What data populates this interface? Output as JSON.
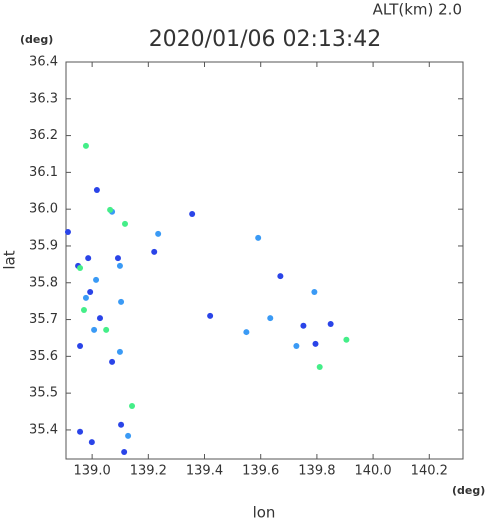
{
  "chart_data": {
    "type": "scatter",
    "annotation": "ALT(km) 2.0",
    "title": "2020/01/06 02:13:42",
    "y_unit": "(deg)",
    "x_unit": "(deg)",
    "y_label": "lat",
    "x_label": "lon",
    "xlim": [
      138.907,
      140.32
    ],
    "ylim": [
      35.321,
      36.4
    ],
    "xticks": [
      {
        "value": 139,
        "label": "139.0"
      },
      139.2,
      139.4,
      139.6,
      139.8,
      {
        "value": 140,
        "label": "140.0"
      },
      140.2
    ],
    "yticks": [
      {
        "value": 35.4,
        "label": "35.4"
      },
      35.5,
      35.6,
      35.7,
      35.8,
      35.9,
      {
        "value": 36,
        "label": "36.0"
      },
      36.1,
      36.2,
      36.3,
      36.4
    ],
    "series": [
      {
        "color": "#2a44e8",
        "x": [
          139.017,
          138.914,
          138.95,
          138.986,
          138.993,
          139.028,
          138.957,
          138.999,
          139.103,
          139.092,
          139.221,
          139.356,
          139.42,
          139.67,
          139.752,
          139.849,
          139.795,
          139.071,
          138.957,
          139.114
        ],
        "values": [
          36.052,
          35.938,
          35.846,
          35.867,
          35.775,
          35.704,
          35.628,
          35.367,
          35.414,
          35.867,
          35.884,
          35.987,
          35.71,
          35.818,
          35.683,
          35.688,
          35.634,
          35.585,
          35.395,
          35.34
        ]
      },
      {
        "color": "#3a9af5",
        "x": [
          139.071,
          139.235,
          139.099,
          139.014,
          139.103,
          139.007,
          138.978,
          139.791,
          139.727,
          139.634,
          139.549,
          139.099,
          139.128,
          139.591
        ],
        "values": [
          35.993,
          35.933,
          35.846,
          35.808,
          35.748,
          35.672,
          35.759,
          35.775,
          35.628,
          35.704,
          35.666,
          35.612,
          35.384,
          35.922
        ]
      },
      {
        "color": "#44ee88",
        "x": [
          138.978,
          139.064,
          139.142,
          138.957,
          138.971,
          139.05,
          139.81,
          139.905,
          139.117
        ],
        "values": [
          36.172,
          35.998,
          35.465,
          35.84,
          35.726,
          35.672,
          35.571,
          35.645,
          35.96
        ]
      }
    ]
  }
}
